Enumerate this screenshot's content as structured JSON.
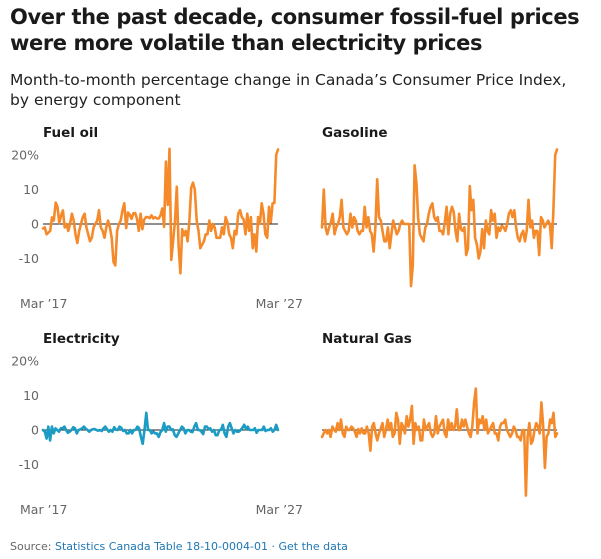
{
  "header": {
    "title": "Over the past decade, consumer fossil-fuel prices were more volatile than electricity prices",
    "subtitle": "Month-to-month percentage change in Canada’s Consumer Price Index, by energy component"
  },
  "footer": {
    "source_prefix": "Source:",
    "source_text": "Statistics Canada Table 18-10-0004-01",
    "separator": "·",
    "link": "Get the data"
  },
  "colors": {
    "fossil": "#f58a2b",
    "electricity": "#1a9cc4",
    "zero_line": "#222222",
    "axis_text": "#666666"
  },
  "chart_data": [
    {
      "type": "line",
      "title": "Fuel oil",
      "x_tick_labels": [
        "Mar ’17",
        "Mar ’27"
      ],
      "y_ticks": [
        20,
        10,
        0,
        -10
      ],
      "y_tick_labels": [
        "20%",
        "10",
        "0",
        "-10"
      ],
      "ylim": [
        -20,
        22
      ],
      "color": "#f58a2b",
      "values": [
        -1.3,
        -1,
        -3,
        -2.5,
        -2,
        1.9,
        1,
        6.2,
        5,
        0.3,
        2.5,
        3.9,
        -1,
        0,
        -2,
        0.1,
        3,
        1,
        -3,
        -5.5,
        -2,
        0,
        2,
        3,
        -1,
        -3,
        -5,
        -4,
        -1,
        0,
        1,
        4,
        -1,
        -2,
        -4,
        -1,
        1,
        -1,
        -4,
        -11,
        -12,
        -2,
        0,
        1,
        4,
        6,
        -1.2,
        3.3,
        2.7,
        1.5,
        3.1,
        3.2,
        1.5,
        -2,
        3,
        -1.5,
        1.3,
        2,
        2,
        1.7,
        2.5,
        1.6,
        2,
        1.6,
        1.6,
        2.5,
        4.5,
        -0.8,
        18.1,
        5.5,
        21.8,
        -10.4,
        -4.6,
        0.8,
        10.8,
        -6.4,
        -14.3,
        -1.5,
        -3.3,
        -2,
        -5,
        1,
        10.5,
        12,
        10,
        1,
        -2,
        -7,
        -6,
        -5,
        -3,
        -3,
        1,
        -2,
        0,
        -1,
        -4,
        -4,
        -4,
        -1,
        -3,
        2,
        0.5,
        -3,
        -4,
        -7,
        -2,
        -3,
        3,
        4,
        2,
        1.3,
        -3,
        3,
        -2,
        2,
        -7,
        -3,
        -8,
        2,
        0,
        6,
        3,
        -3,
        -4,
        5,
        0.5,
        6,
        6.1,
        20,
        21.6
      ]
    },
    {
      "type": "line",
      "title": "Gasoline",
      "y_ticks": [
        20,
        10,
        0,
        -10
      ],
      "ylim": [
        -20,
        22
      ],
      "color": "#f58a2b",
      "values": [
        -1,
        10,
        -1,
        -3,
        -1,
        0.5,
        3,
        -3,
        -1,
        0,
        2,
        7,
        -1,
        -2,
        -3,
        -2,
        3,
        -1,
        2,
        1,
        -2,
        -3,
        -2,
        -2,
        5,
        -1,
        2,
        -2,
        -3,
        -8,
        -1,
        13,
        2,
        1,
        -2,
        -5,
        -5,
        -1,
        -7,
        -3,
        1,
        -1,
        -3,
        -2,
        0,
        1,
        0,
        0,
        0,
        0,
        -18,
        -12,
        17,
        12,
        2,
        -3,
        -4,
        -5,
        -1,
        0,
        3,
        5,
        6,
        2,
        1,
        2,
        -2,
        -2,
        -3,
        0.5,
        5,
        -3,
        3,
        5,
        3.5,
        -2,
        -5,
        3,
        -1.5,
        -2,
        -1,
        -9,
        -7,
        11,
        4,
        7,
        -4,
        -6,
        -10,
        -8,
        -1.5,
        -7,
        1,
        -2,
        -3,
        4,
        1,
        3,
        -4,
        -1,
        -2,
        -0.5,
        -1,
        -2,
        0,
        3,
        4,
        2,
        4,
        -1,
        -4,
        -5,
        -3,
        -2,
        -5,
        -2,
        7,
        -1,
        1,
        -4,
        -2,
        -2,
        -9,
        2,
        1,
        -1,
        0,
        1,
        0,
        -7,
        4,
        20,
        21.6
      ]
    },
    {
      "type": "line",
      "title": "Electricity",
      "x_tick_labels": [
        "Mar ’17",
        "Mar ’27"
      ],
      "y_ticks": [
        20,
        10,
        0,
        -10
      ],
      "y_tick_labels": [
        "20%",
        "10",
        "0",
        "-10"
      ],
      "ylim": [
        -20,
        22
      ],
      "color": "#1a9cc4",
      "values": [
        0,
        -0.5,
        -2.5,
        1,
        -3,
        1,
        -1,
        0.5,
        0,
        -0.5,
        0.5,
        0.5,
        1,
        0,
        -0.8,
        -0.5,
        0,
        0.8,
        0.5,
        -1,
        0,
        0.2,
        0.5,
        1,
        0.4,
        0,
        -0.5,
        0,
        0.2,
        0.3,
        0,
        -0.2,
        0,
        -0.3,
        0.5,
        1,
        0.2,
        -0.5,
        0,
        -0.5,
        0.8,
        0.1,
        0,
        1,
        0.6,
        -0.3,
        0,
        -1,
        -1,
        0,
        -1,
        0,
        0,
        1,
        0.5,
        -2,
        -4,
        0,
        5,
        0,
        0,
        -1,
        -0.5,
        -1,
        -1,
        -2,
        -0.6,
        0,
        2,
        -0.5,
        1,
        1,
        0,
        0.2,
        -1.5,
        -2,
        -1,
        0,
        1,
        0.5,
        -1,
        0,
        0,
        -0.5,
        -0.6,
        1,
        2,
        0,
        0,
        -0.5,
        -1.2,
        1,
        1,
        0.3,
        0.5,
        -0.5,
        0,
        -1.5,
        -1.5,
        0,
        0,
        1.5,
        -1,
        -2,
        1,
        2,
        0.5,
        -1,
        0,
        -0.5,
        -0.5,
        0,
        0.6,
        1.5,
        0.3,
        1,
        0,
        0,
        0,
        0.5,
        -0.8,
        0,
        0,
        0,
        1,
        -0.3,
        0,
        0,
        0.5,
        -0.5,
        0,
        1.5,
        0
      ]
    },
    {
      "type": "line",
      "title": "Natural Gas",
      "y_ticks": [
        20,
        10,
        0,
        -10
      ],
      "ylim": [
        -20,
        22
      ],
      "color": "#f58a2b",
      "values": [
        -2,
        -1,
        0,
        -1,
        0,
        -2,
        1,
        0,
        -0.5,
        2,
        0,
        3,
        -1,
        -2,
        1,
        0,
        0,
        1,
        0.5,
        -0.5,
        -2,
        0.3,
        -1,
        0.5,
        -1,
        -1,
        1,
        -1,
        -6,
        1,
        2,
        -1,
        -3,
        -1,
        0.5,
        2,
        -2,
        0,
        3,
        0,
        2,
        -2,
        -1,
        5,
        3,
        -4,
        2,
        1,
        -1,
        4,
        1,
        3,
        7,
        -4,
        2,
        0,
        1,
        -3,
        -3,
        3,
        0,
        1,
        2,
        -1,
        -2,
        -1,
        4,
        -1,
        1,
        2,
        3,
        -1,
        -2,
        3,
        0,
        2,
        0,
        1,
        6,
        0,
        0,
        3,
        1,
        3,
        1,
        -1,
        -2,
        1,
        8,
        12,
        -1,
        3,
        2,
        4,
        0,
        3,
        -1,
        0,
        1,
        2,
        -1,
        -1,
        -3,
        1,
        2,
        2,
        3,
        0,
        -1,
        -2,
        -1,
        1,
        0,
        -2,
        -2,
        -3,
        0,
        0,
        -19,
        -2,
        2,
        -4,
        -3,
        0,
        2,
        1,
        -1,
        8,
        1,
        -11,
        -2,
        -1,
        3,
        2,
        5,
        -2,
        -1
      ]
    }
  ]
}
